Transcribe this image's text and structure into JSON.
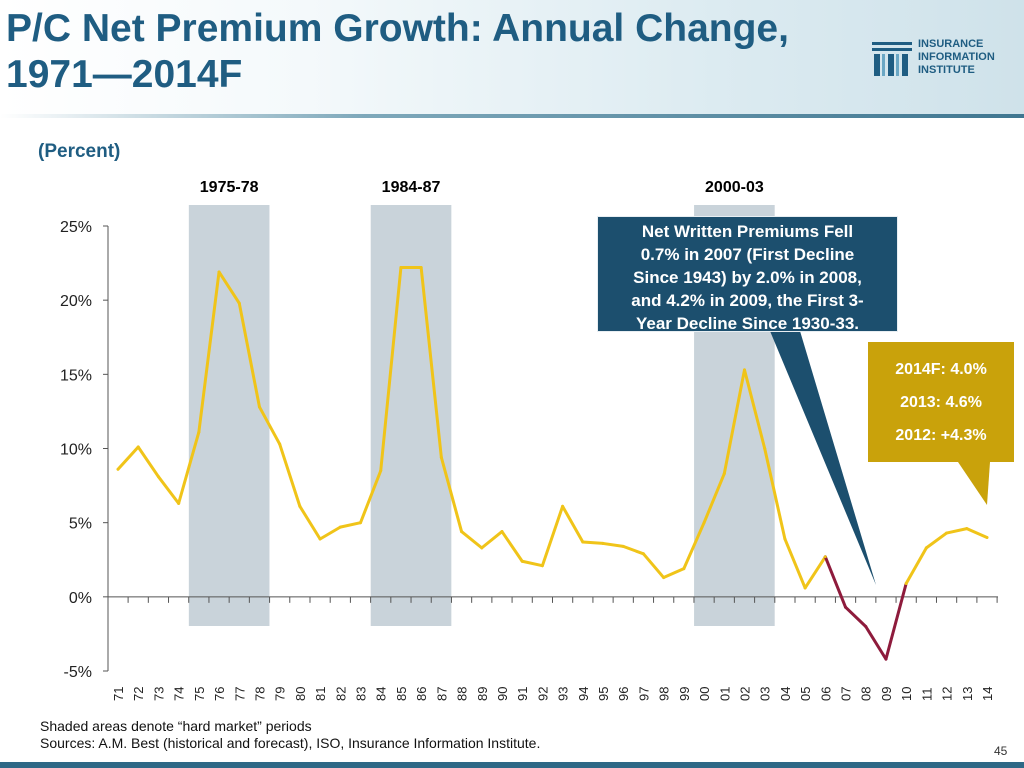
{
  "slide": {
    "title_line1": "P/C Net Premium Growth: Annual Change,",
    "title_line2": "1971—2014F",
    "unit_label": "(Percent)",
    "page_number": "45"
  },
  "logo": {
    "line1": "INSURANCE",
    "line2": "INFORMATION",
    "line3": "INSTITUTE"
  },
  "callouts": {
    "main_lines": [
      "Net Written Premiums Fell",
      "0.7% in 2007 (First Decline",
      "Since 1943) by 2.0% in 2008,",
      "and 4.2% in 2009, the First 3-",
      "Year Decline Since 1930-33."
    ],
    "side_lines": [
      "2014F: 4.0%",
      "2013: 4.6%",
      "2012: +4.3%"
    ]
  },
  "footnote": {
    "line1": "Shaded areas denote “hard market” periods",
    "line2": "Sources:  A.M. Best (historical and forecast), ISO, Insurance Information Institute."
  },
  "colors": {
    "title": "#1f5d82",
    "line_positive": "#f0c419",
    "line_negative": "#8e1b3c",
    "shade": "#c9d3da",
    "callout_main": "#1c4f6e",
    "callout_side": "#c9a20b",
    "axis": "#555555"
  },
  "chart_data": {
    "type": "line",
    "title": "P/C Net Premium Growth: Annual Change, 1971—2014F",
    "xlabel": "",
    "ylabel": "(Percent)",
    "ylim": [
      -5,
      25
    ],
    "yticks": [
      -5,
      0,
      5,
      10,
      15,
      20,
      25
    ],
    "ytick_labels": [
      "-5%",
      "0%",
      "5%",
      "10%",
      "15%",
      "20%",
      "25%"
    ],
    "categories": [
      "71",
      "72",
      "73",
      "74",
      "75",
      "76",
      "77",
      "78",
      "79",
      "80",
      "81",
      "82",
      "83",
      "84",
      "85",
      "86",
      "87",
      "88",
      "89",
      "90",
      "91",
      "92",
      "93",
      "94",
      "95",
      "96",
      "97",
      "98",
      "99",
      "00",
      "01",
      "02",
      "03",
      "04",
      "05",
      "06",
      "07",
      "08",
      "09",
      "10",
      "11",
      "12",
      "13",
      "14"
    ],
    "series": [
      {
        "name": "Net Premium Growth",
        "values": [
          8.6,
          10.1,
          8.1,
          6.3,
          11.1,
          21.9,
          19.8,
          12.8,
          10.3,
          6.1,
          3.9,
          4.7,
          5.0,
          8.5,
          22.2,
          22.2,
          9.4,
          4.4,
          3.3,
          4.4,
          2.4,
          2.1,
          6.1,
          3.7,
          3.6,
          3.4,
          2.9,
          1.3,
          1.9,
          5.0,
          8.3,
          15.3,
          10.0,
          3.9,
          0.6,
          2.7,
          -0.7,
          -2.0,
          -4.2,
          0.9,
          3.3,
          4.3,
          4.6,
          4.0
        ]
      }
    ],
    "hard_markets": [
      {
        "label": "1975-78",
        "from": "75",
        "to": "78"
      },
      {
        "label": "1984-87",
        "from": "84",
        "to": "87"
      },
      {
        "label": "2000-03",
        "from": "00",
        "to": "03"
      }
    ],
    "grid": false,
    "legend": "none"
  }
}
